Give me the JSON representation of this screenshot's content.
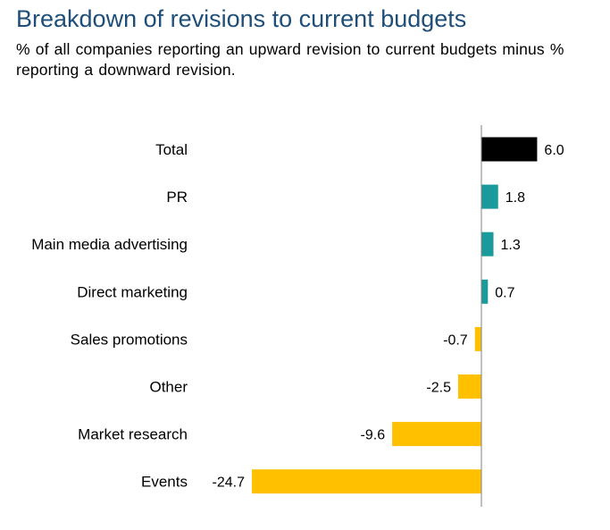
{
  "chart_data": {
    "type": "bar",
    "orientation": "horizontal",
    "title": "Breakdown of revisions to current budgets",
    "subtitle": "% of all companies reporting an upward revision to current budgets minus % reporting a downward revision.",
    "categories": [
      "Total",
      "PR",
      "Main media advertising",
      "Direct marketing",
      "Sales promotions",
      "Other",
      "Market research",
      "Events"
    ],
    "values": [
      6.0,
      1.8,
      1.3,
      0.7,
      -0.7,
      -2.5,
      -9.6,
      -24.7
    ],
    "value_labels": [
      "6.0",
      "1.8",
      "1.3",
      "0.7",
      "-0.7",
      "-2.5",
      "-9.6",
      "-24.7"
    ],
    "bar_colors": [
      "#000000",
      "#1a9a9a",
      "#1a9a9a",
      "#1a9a9a",
      "#ffc000",
      "#ffc000",
      "#ffc000",
      "#ffc000"
    ],
    "xlim": [
      -24.7,
      6.0
    ],
    "grid": false,
    "legend": "none"
  }
}
